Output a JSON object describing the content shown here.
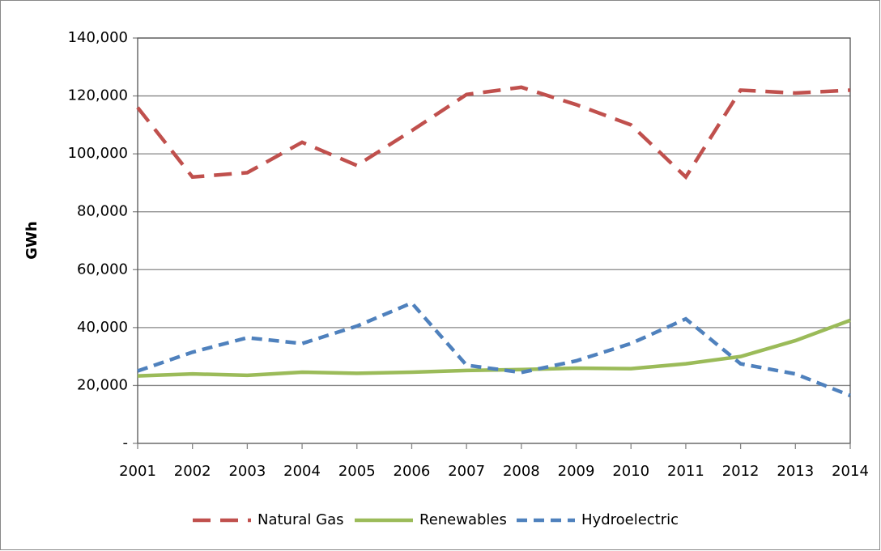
{
  "chart_data": {
    "type": "line",
    "y_label": "GWh",
    "categories": [
      "2001",
      "2002",
      "2003",
      "2004",
      "2005",
      "2006",
      "2007",
      "2008",
      "2009",
      "2010",
      "2011",
      "2012",
      "2013",
      "2014"
    ],
    "series": [
      {
        "name": "Natural Gas",
        "color": "#c0504d",
        "linestyle": "long-dash",
        "values": [
          116000,
          92000,
          93500,
          104000,
          96000,
          108000,
          120500,
          123000,
          117000,
          110000,
          92000,
          122000,
          121000,
          122000
        ]
      },
      {
        "name": "Renewables",
        "color": "#9bbb59",
        "linestyle": "solid",
        "values": [
          23300,
          24000,
          23500,
          24600,
          24200,
          24600,
          25200,
          25500,
          26000,
          25800,
          27500,
          30000,
          35500,
          42500
        ]
      },
      {
        "name": "Hydroelectric",
        "color": "#4f81bd",
        "linestyle": "short-dash",
        "values": [
          25000,
          31500,
          36500,
          34500,
          40500,
          48500,
          27000,
          24500,
          28500,
          34500,
          43000,
          27500,
          24000,
          16500
        ]
      }
    ],
    "ylim": [
      0,
      140000
    ],
    "yticks": [
      {
        "value": 0,
        "label": "-"
      },
      {
        "value": 20000,
        "label": "20,000"
      },
      {
        "value": 40000,
        "label": "40,000"
      },
      {
        "value": 60000,
        "label": "60,000"
      },
      {
        "value": 80000,
        "label": "80,000"
      },
      {
        "value": 100000,
        "label": "100,000"
      },
      {
        "value": 120000,
        "label": "120,000"
      },
      {
        "value": 140000,
        "label": "140,000"
      }
    ],
    "grid": true,
    "legend": "bottom"
  }
}
